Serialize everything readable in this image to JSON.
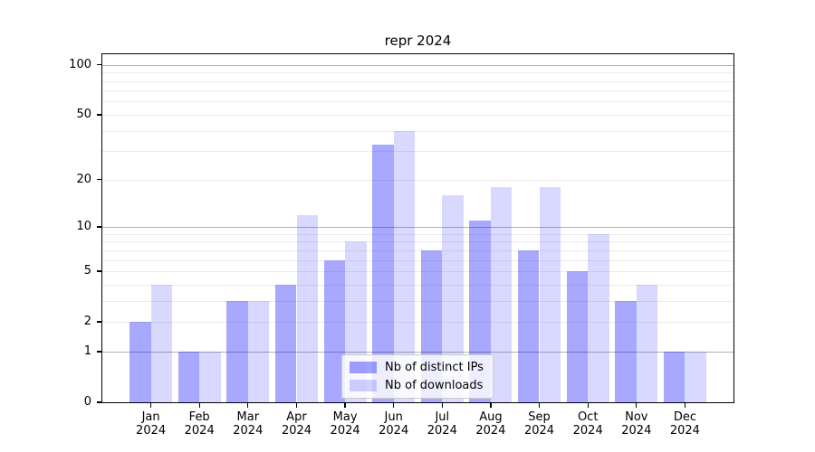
{
  "chart_data": {
    "type": "bar",
    "title": "repr 2024",
    "categories": [
      "Jan",
      "Feb",
      "Mar",
      "Apr",
      "May",
      "Jun",
      "Jul",
      "Aug",
      "Sep",
      "Oct",
      "Nov",
      "Dec"
    ],
    "category_year": "2024",
    "series": [
      {
        "name": "Nb of distinct IPs",
        "color": "#0000ff",
        "alpha": 0.34,
        "values": [
          2,
          1,
          3,
          4,
          6,
          33,
          7,
          11,
          7,
          5,
          3,
          1
        ]
      },
      {
        "name": "Nb of downloads",
        "color": "#0000ff",
        "alpha": 0.15,
        "values": [
          4,
          1,
          3,
          12,
          8,
          40,
          16,
          18,
          18,
          9,
          4,
          1
        ]
      }
    ],
    "yscale": "log1p",
    "ylim": [
      0,
      115.6
    ],
    "y_ticks": [
      100,
      50,
      20,
      10,
      5,
      2,
      1,
      0
    ],
    "y_major_gridlines": [
      100,
      10,
      1
    ],
    "y_minor_gridlines": [
      2,
      3,
      4,
      5,
      6,
      7,
      8,
      9,
      20,
      30,
      40,
      50,
      60,
      70,
      80,
      90
    ],
    "xlabel": "",
    "ylabel": "",
    "grid": true,
    "legend_position": "lower center",
    "colors": {
      "grid_major": "#b2b2b2",
      "grid_minor": "#ebebeb",
      "spine": "#000000",
      "legend_border": "#cccccc"
    }
  }
}
